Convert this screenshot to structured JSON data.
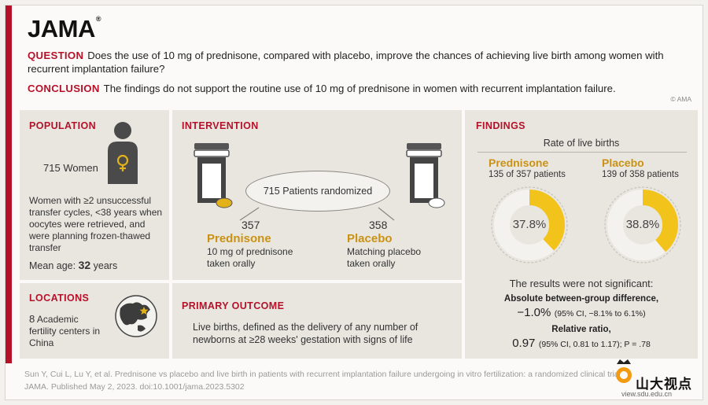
{
  "header": {
    "logo": "JAMA",
    "trademark": "®",
    "question_label": "QUESTION",
    "question": "Does the use of 10 mg of prednisone, compared with placebo, improve the chances of achieving live birth among women with recurrent implantation failure?",
    "conclusion_label": "CONCLUSION",
    "conclusion": "The findings do not support the routine use of 10 mg of prednisone in women with recurrent implantation failure.",
    "copyright": "© AMA"
  },
  "population": {
    "title": "POPULATION",
    "count": "715",
    "count_label": "Women",
    "description": "Women with ≥2 unsuccessful transfer cycles, <38 years when oocytes were retrieved, and were planning frozen-thawed transfer",
    "mean_age_label": "Mean age:",
    "mean_age": "32",
    "mean_age_unit": "years"
  },
  "locations": {
    "title": "LOCATIONS",
    "count": "8",
    "description": "Academic fertility centers in China"
  },
  "intervention": {
    "title": "INTERVENTION",
    "randomized_count": "715",
    "randomized_label": "Patients randomized",
    "arms": [
      {
        "n": "357",
        "name": "Prednisone",
        "desc1": "10 mg of prednisone",
        "desc2": "taken orally"
      },
      {
        "n": "358",
        "name": "Placebo",
        "desc1": "Matching placebo",
        "desc2": "taken orally"
      }
    ]
  },
  "primary_outcome": {
    "title": "PRIMARY OUTCOME",
    "description": "Live births, defined as the delivery of any number of newborns at ≥28 weeks' gestation with signs of life"
  },
  "findings": {
    "title": "FINDINGS",
    "rate_label": "Rate of live births",
    "groups": [
      {
        "name": "Prednisone",
        "count": "135 of 357 patients",
        "percent_label": "37.8%",
        "percent": 37.8
      },
      {
        "name": "Placebo",
        "count": "139 of 358 patients",
        "percent_label": "38.8%",
        "percent": 38.8
      }
    ],
    "not_significant": "The results were not significant:",
    "abs_diff_label": "Absolute between-group difference,",
    "abs_diff_value": "−1.0%",
    "abs_diff_ci": "(95% CI, −8.1% to 6.1%)",
    "rr_label": "Relative ratio,",
    "rr_value": "0.97",
    "rr_ci": "(95% CI, 0.81 to 1.17); P = .78"
  },
  "citation": {
    "line1": "Sun Y, Cui L, Lu Y, et al. Prednisone vs placebo and live birth in patients with recurrent implantation failure undergoing in vitro fertilization: a randomized clinical trial.",
    "line2": "JAMA. Published May 2, 2023. doi:10.1001/jama.2023.5302"
  },
  "watermark": {
    "text": "山大视点",
    "url": "view.sdu.edu.cn"
  },
  "colors": {
    "red": "#b5122a",
    "gold": "#c99214",
    "donut_fill": "#f2c31b",
    "donut_track": "#f4f2ee"
  }
}
